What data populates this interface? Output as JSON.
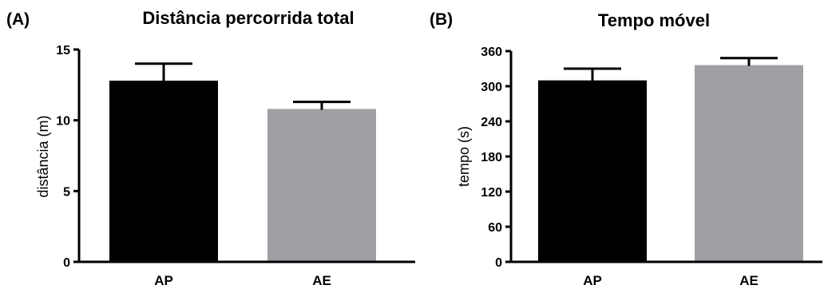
{
  "chart_data": [
    {
      "type": "bar",
      "panel_label": "(A)",
      "title": "Distância percorrida total",
      "xlabel": "",
      "ylabel": "distância (m)",
      "categories": [
        "AP",
        "AE"
      ],
      "values": [
        12.8,
        10.8
      ],
      "error_upper": [
        1.2,
        0.5
      ],
      "colors": [
        "#000000",
        "#a0a0a4"
      ],
      "ylim": [
        0,
        15
      ],
      "yticks": [
        0,
        5,
        10,
        15
      ],
      "grid": false
    },
    {
      "type": "bar",
      "panel_label": "(B)",
      "title": "Tempo móvel",
      "xlabel": "",
      "ylabel": "tempo (s)",
      "categories": [
        "AP",
        "AE"
      ],
      "values": [
        310,
        336
      ],
      "error_upper": [
        20,
        12
      ],
      "colors": [
        "#000000",
        "#a0a0a4"
      ],
      "ylim": [
        0,
        360
      ],
      "yticks": [
        0,
        60,
        120,
        180,
        240,
        300,
        360
      ],
      "grid": false
    }
  ]
}
